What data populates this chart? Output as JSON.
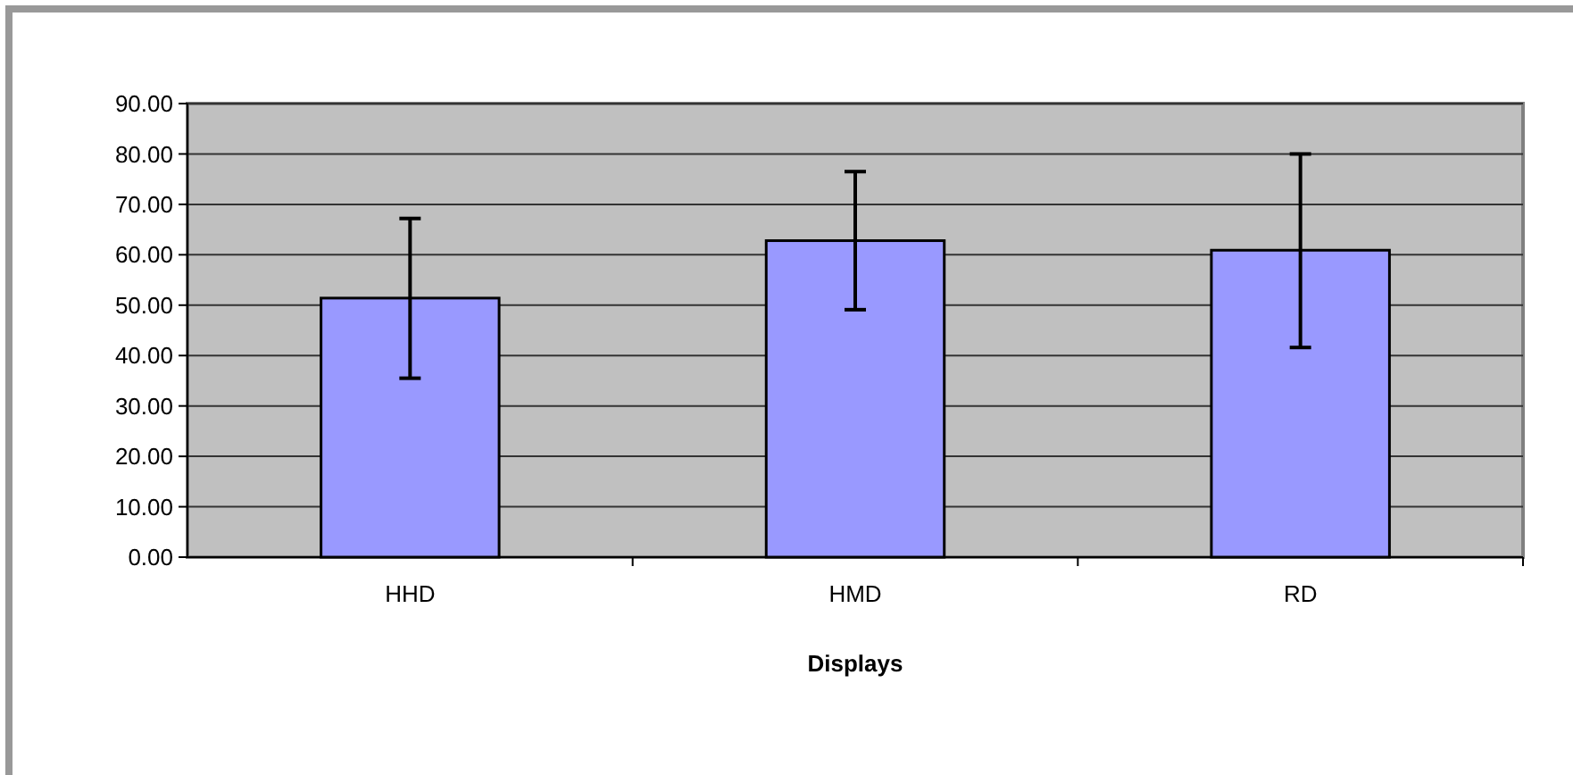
{
  "chart_data": {
    "type": "bar",
    "xlabel": "Displays",
    "categories": [
      "HHD",
      "HMD",
      "RD"
    ],
    "values": [
      51.4,
      62.8,
      60.9
    ],
    "color": "#9999ff",
    "errors": [
      [
        35.5,
        67.2
      ],
      [
        49.1,
        76.5
      ],
      [
        41.6,
        80.0
      ]
    ],
    "ylim": [
      0,
      90
    ],
    "yticks": [
      {
        "value": 0,
        "label": "0.00"
      },
      {
        "value": 10,
        "label": "10.00"
      },
      {
        "value": 20,
        "label": "20.00"
      },
      {
        "value": 30,
        "label": "30.00"
      },
      {
        "value": 40,
        "label": "40.00"
      },
      {
        "value": 50,
        "label": "50.00"
      },
      {
        "value": 60,
        "label": "60.00"
      },
      {
        "value": 70,
        "label": "70.00"
      },
      {
        "value": 80,
        "label": "80.00"
      },
      {
        "value": 90,
        "label": "90.00"
      }
    ],
    "grid": "y"
  }
}
